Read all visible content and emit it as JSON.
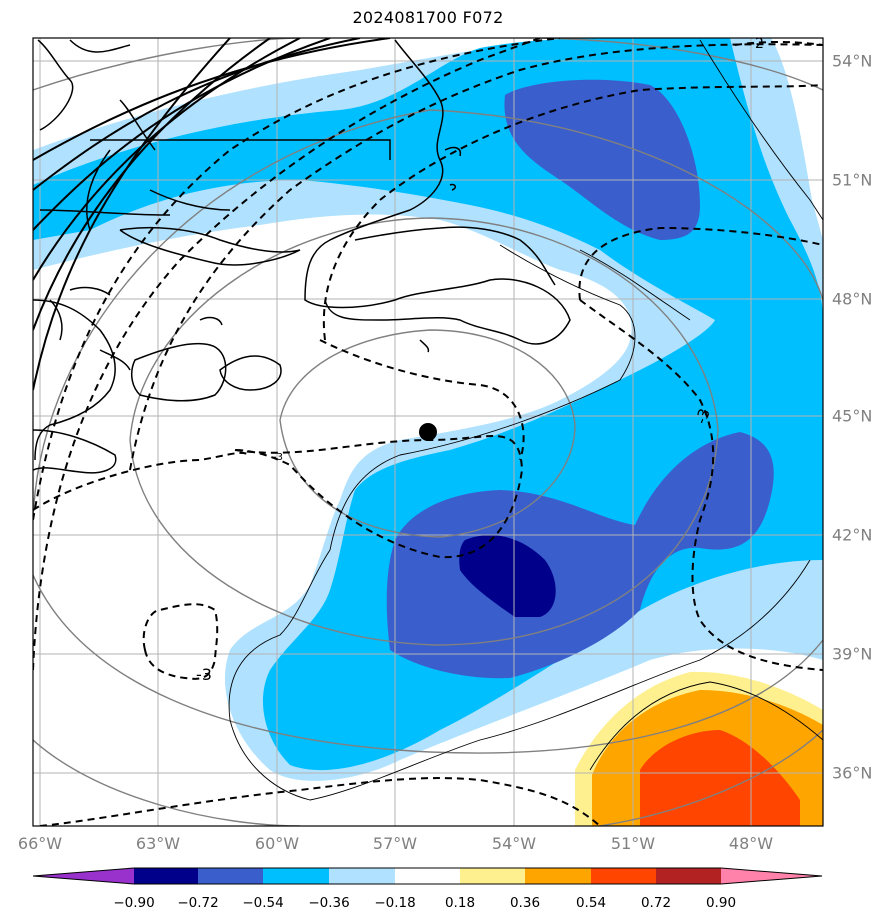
{
  "title": "2024081700 F072",
  "longitude_labels": [
    "66°W",
    "63°W",
    "60°W",
    "57°W",
    "54°W",
    "51°W",
    "48°W"
  ],
  "latitude_labels": [
    "54°N",
    "51°N",
    "48°N",
    "45°N",
    "42°N",
    "39°N",
    "36°N"
  ],
  "contour_labels": [
    "-3",
    "-3",
    "-3",
    "-2"
  ],
  "colorbar": {
    "ticks": [
      "−0.90",
      "−0.72",
      "−0.54",
      "−0.36",
      "−0.18",
      "0.18",
      "0.36",
      "0.54",
      "0.72",
      "0.90"
    ],
    "colors": [
      "#9932cc",
      "#00008b",
      "#3a5fcd",
      "#00bfff",
      "#b0e2ff",
      "#ffffff",
      "#fff08f",
      "#ffa500",
      "#ff4500",
      "#b22222",
      "#ff82ab"
    ]
  },
  "marker": "storm-center-dot"
}
